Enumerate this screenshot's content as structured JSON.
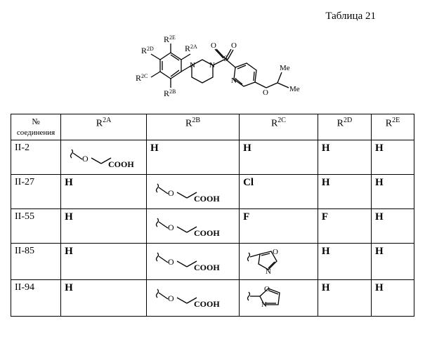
{
  "title": "Таблица 21",
  "header": {
    "col_num_line1": "№",
    "col_num_line2": "соединения",
    "cols": [
      "R",
      "R",
      "R",
      "R",
      "R"
    ],
    "col_sups": [
      "2A",
      "2B",
      "2C",
      "2D",
      "2E"
    ]
  },
  "struct_labels": {
    "r2a": "R",
    "r2a_sup": "2A",
    "r2b": "R",
    "r2b_sup": "2B",
    "r2c": "R",
    "r2c_sup": "2C",
    "r2d": "R",
    "r2d_sup": "2D",
    "r2e": "R",
    "r2e_sup": "2E",
    "me1": "Me",
    "me2": "Me",
    "n1": "N",
    "n2": "N",
    "n3": "N",
    "s": "S",
    "o1": "O",
    "o2": "O",
    "o3": "O"
  },
  "rows": [
    {
      "id": "II-2",
      "r2a": "OCOOH",
      "r2b": "H",
      "r2c": "H",
      "r2d": "H",
      "r2e": "H"
    },
    {
      "id": "II-27",
      "r2a": "H",
      "r2b": "OCOOH",
      "r2c": "Cl",
      "r2d": "H",
      "r2e": "H"
    },
    {
      "id": "II-55",
      "r2a": "H",
      "r2b": "OCOOH",
      "r2c": "F",
      "r2d": "F",
      "r2e": "H"
    },
    {
      "id": "II-85",
      "r2a": "H",
      "r2b": "OCOOH",
      "r2c": "OXAZOLE5",
      "r2d": "H",
      "r2e": "H"
    },
    {
      "id": "II-94",
      "r2a": "H",
      "r2b": "OCOOH",
      "r2c": "OXAZOLE2",
      "r2d": "H",
      "r2e": "H"
    }
  ],
  "frag": {
    "cooh": "COOH",
    "o": "O",
    "n": "N"
  },
  "colors": {
    "line": "#000000",
    "bg": "#ffffff"
  },
  "col_widths": {
    "num": 70,
    "r2a": 120,
    "r2b": 130,
    "r2c": 110,
    "r2d": 75,
    "r2e": 60
  }
}
